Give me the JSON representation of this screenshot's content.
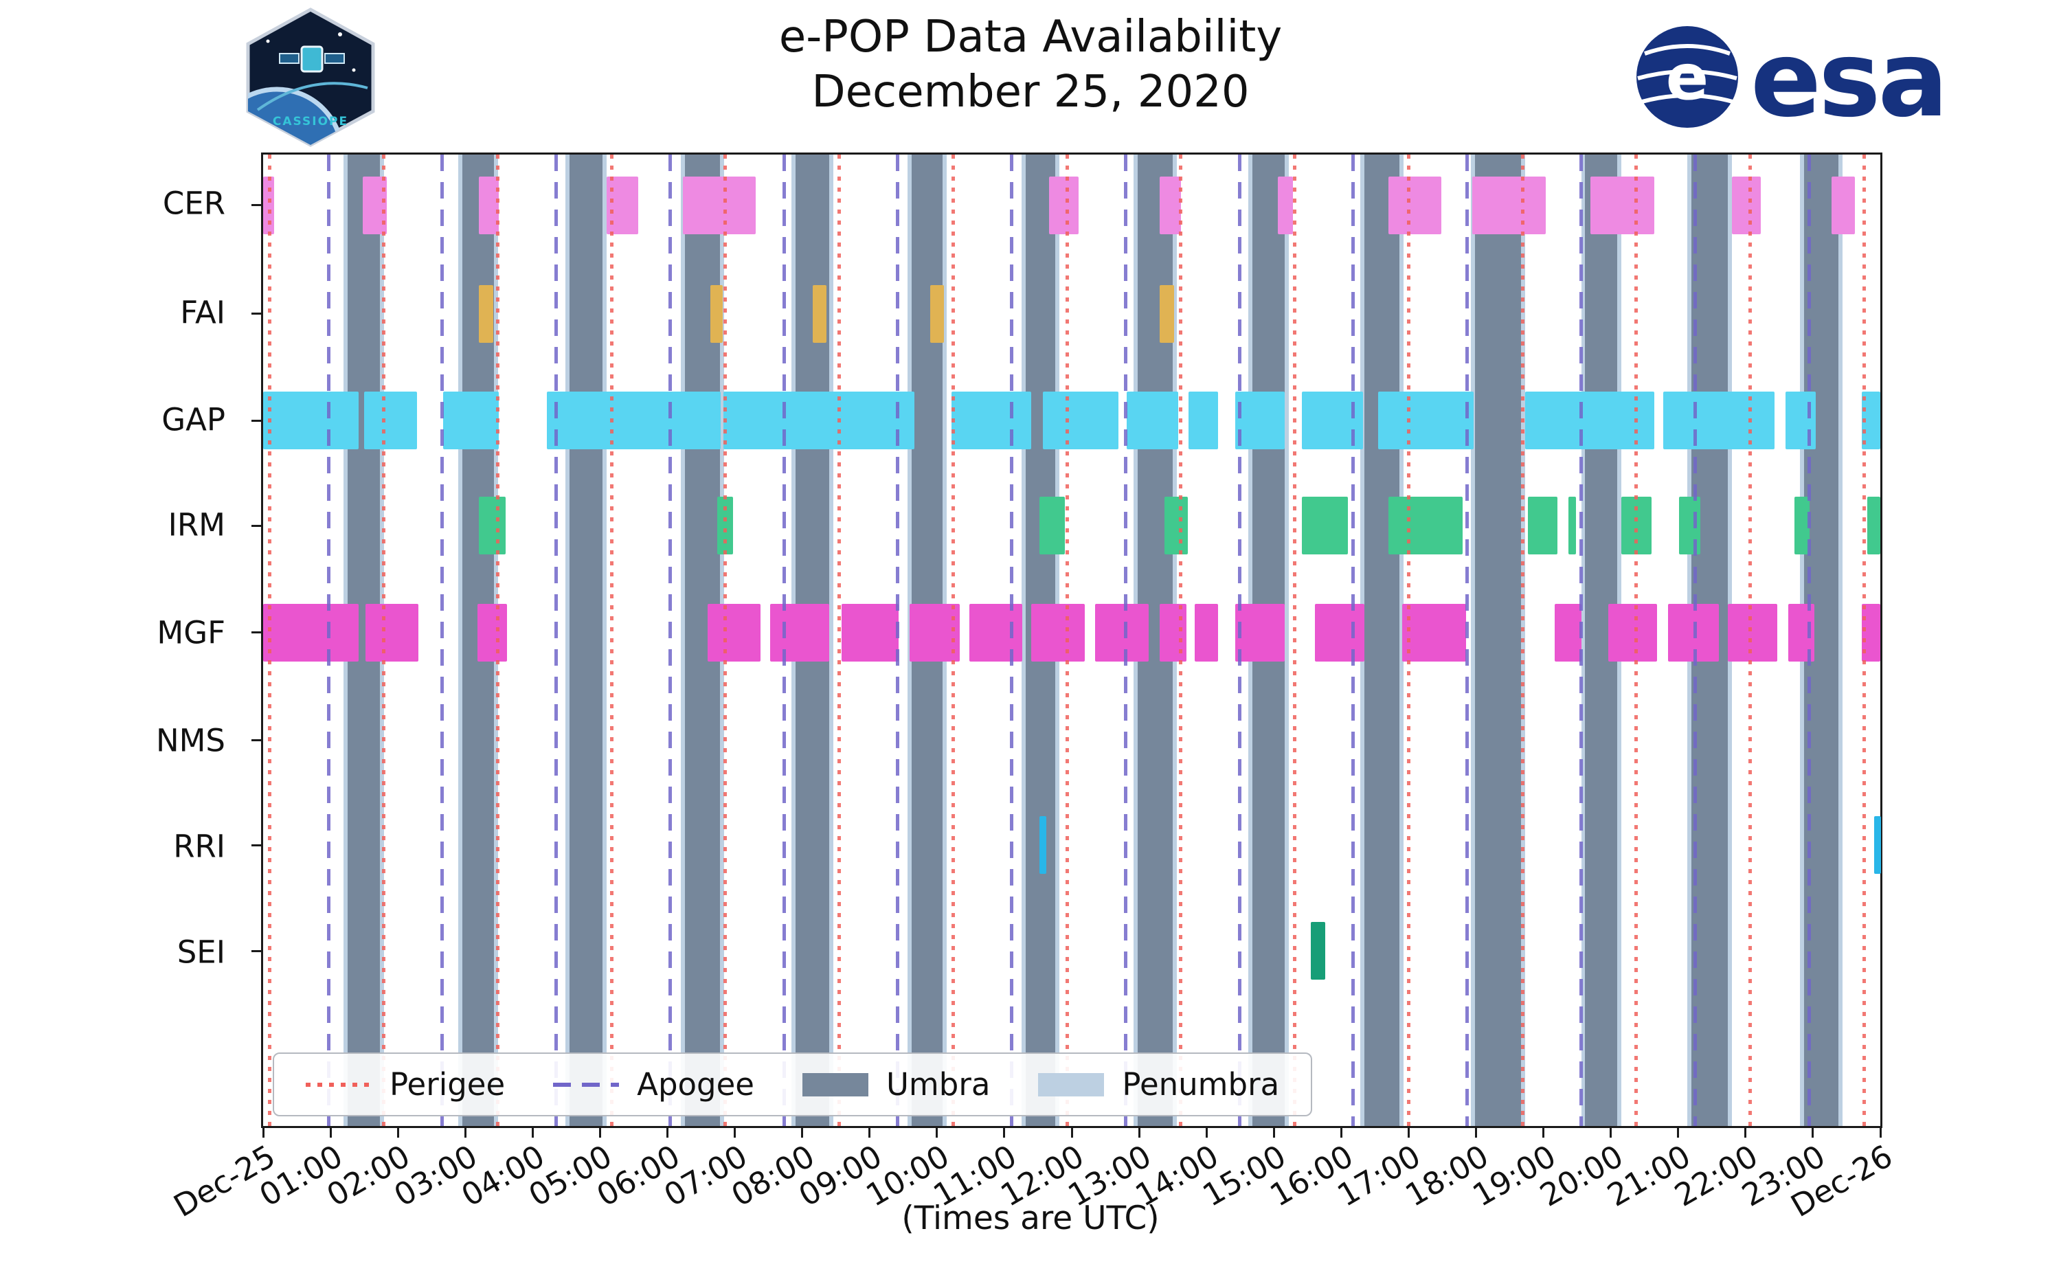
{
  "logos": {
    "cassiope_label": "CASSIOPE",
    "esa_wordmark": "esa",
    "esa_globe_letter": "e",
    "esa_blue": "#16327f",
    "patch_navy": "#0d1b33",
    "patch_teal": "#35c4d8"
  },
  "chart_data": {
    "type": "timeline",
    "title": "e-POP Data Availability",
    "subtitle": "December 25, 2020",
    "x_axis": {
      "label": "(Times are UTC)",
      "range_hours": [
        0,
        24
      ],
      "tick_labels": [
        "Dec-25",
        "01:00",
        "02:00",
        "03:00",
        "04:00",
        "05:00",
        "06:00",
        "07:00",
        "08:00",
        "09:00",
        "10:00",
        "11:00",
        "12:00",
        "13:00",
        "14:00",
        "15:00",
        "16:00",
        "17:00",
        "18:00",
        "19:00",
        "20:00",
        "21:00",
        "22:00",
        "23:00",
        "Dec-26"
      ]
    },
    "rows": [
      "CER",
      "FAI",
      "GAP",
      "IRM",
      "MGF",
      "NMS",
      "RRI",
      "SEI"
    ],
    "row_colors": {
      "CER": "#ee8ae2",
      "FAI": "#e0b353",
      "GAP": "#59d5f2",
      "IRM": "#41c98e",
      "MGF": "#ea55cf",
      "NMS": "#999999",
      "RRI": "#29b6e8",
      "SEI": "#179e77"
    },
    "event_lines": {
      "perigee": {
        "style": "dotted",
        "color": "#f0605a",
        "hours": [
          0.1,
          1.79,
          3.48,
          5.17,
          6.86,
          8.55,
          10.24,
          11.93,
          13.62,
          15.31,
          17.0,
          18.69,
          20.38,
          22.07,
          23.76
        ]
      },
      "apogee": {
        "style": "dashed",
        "color": "#7166c9",
        "hours": [
          0.97,
          2.66,
          4.35,
          6.04,
          7.73,
          9.42,
          11.11,
          12.8,
          14.49,
          16.18,
          17.87,
          19.56,
          21.25,
          22.94
        ]
      }
    },
    "shading": {
      "umbra": {
        "color": "#76879b",
        "intervals": [
          [
            1.25,
            1.73
          ],
          [
            2.96,
            3.43
          ],
          [
            4.55,
            5.04
          ],
          [
            6.26,
            6.78
          ],
          [
            7.9,
            8.4
          ],
          [
            9.62,
            10.08
          ],
          [
            11.32,
            11.76
          ],
          [
            12.98,
            13.5
          ],
          [
            14.68,
            15.16
          ],
          [
            16.34,
            16.86
          ],
          [
            17.98,
            18.67
          ],
          [
            19.62,
            20.1
          ],
          [
            21.2,
            21.74
          ],
          [
            22.87,
            23.38
          ]
        ]
      },
      "penumbra": {
        "color": "#bdd0e2",
        "intervals": [
          [
            1.19,
            1.25
          ],
          [
            1.73,
            1.79
          ],
          [
            2.9,
            2.96
          ],
          [
            3.43,
            3.49
          ],
          [
            4.49,
            4.55
          ],
          [
            5.04,
            5.1
          ],
          [
            6.2,
            6.26
          ],
          [
            6.78,
            6.84
          ],
          [
            7.84,
            7.9
          ],
          [
            8.4,
            8.46
          ],
          [
            9.56,
            9.62
          ],
          [
            10.08,
            10.14
          ],
          [
            11.26,
            11.32
          ],
          [
            11.76,
            11.82
          ],
          [
            12.92,
            12.98
          ],
          [
            13.5,
            13.56
          ],
          [
            14.62,
            14.68
          ],
          [
            15.16,
            15.22
          ],
          [
            16.28,
            16.34
          ],
          [
            16.86,
            16.92
          ],
          [
            17.92,
            17.98
          ],
          [
            18.67,
            18.73
          ],
          [
            19.56,
            19.62
          ],
          [
            20.1,
            20.16
          ],
          [
            21.14,
            21.2
          ],
          [
            21.74,
            21.8
          ],
          [
            22.81,
            22.87
          ],
          [
            23.38,
            23.44
          ]
        ]
      }
    },
    "legend": [
      {
        "label": "Perigee",
        "swatch": "dotted-line",
        "color": "#f0605a"
      },
      {
        "label": "Apogee",
        "swatch": "dashed-line",
        "color": "#7166c9"
      },
      {
        "label": "Umbra",
        "swatch": "box",
        "color": "#76879b"
      },
      {
        "label": "Penumbra",
        "swatch": "box",
        "color": "#bdd0e2"
      }
    ],
    "availability_intervals_hours": {
      "CER": [
        [
          0.0,
          0.16
        ],
        [
          1.48,
          1.84
        ],
        [
          3.2,
          3.5
        ],
        [
          5.1,
          5.57
        ],
        [
          6.23,
          7.31
        ],
        [
          11.66,
          12.1
        ],
        [
          13.3,
          13.62
        ],
        [
          15.06,
          15.28
        ],
        [
          16.7,
          17.49
        ],
        [
          17.94,
          19.03
        ],
        [
          19.7,
          20.65
        ],
        [
          21.8,
          22.23
        ],
        [
          23.28,
          23.62
        ]
      ],
      "FAI": [
        [
          3.2,
          3.42
        ],
        [
          6.64,
          6.82
        ],
        [
          8.16,
          8.36
        ],
        [
          9.9,
          10.1
        ],
        [
          13.3,
          13.52
        ]
      ],
      "GAP": [
        [
          0.0,
          1.42
        ],
        [
          1.5,
          2.28
        ],
        [
          2.67,
          3.5
        ],
        [
          4.21,
          6.79
        ],
        [
          6.83,
          9.67
        ],
        [
          10.22,
          11.4
        ],
        [
          11.57,
          12.69
        ],
        [
          12.82,
          13.58
        ],
        [
          13.73,
          14.17
        ],
        [
          14.43,
          15.16
        ],
        [
          15.42,
          16.32
        ],
        [
          16.55,
          17.96
        ],
        [
          18.73,
          20.65
        ],
        [
          20.78,
          22.43
        ],
        [
          22.59,
          23.04
        ],
        [
          23.72,
          24.0
        ]
      ],
      "IRM": [
        [
          3.2,
          3.6
        ],
        [
          6.74,
          6.97
        ],
        [
          11.52,
          11.9
        ],
        [
          13.38,
          13.72
        ],
        [
          15.42,
          16.1
        ],
        [
          16.7,
          17.8
        ],
        [
          18.77,
          19.21
        ],
        [
          19.37,
          19.48
        ],
        [
          20.16,
          20.6
        ],
        [
          21.01,
          21.33
        ],
        [
          22.73,
          22.95
        ],
        [
          23.81,
          24.0
        ]
      ],
      "MGF": [
        [
          0.0,
          1.42
        ],
        [
          1.52,
          2.3
        ],
        [
          3.18,
          3.62
        ],
        [
          6.6,
          7.38
        ],
        [
          7.52,
          8.4
        ],
        [
          8.58,
          9.43
        ],
        [
          9.59,
          10.34
        ],
        [
          10.48,
          11.27
        ],
        [
          11.4,
          12.19
        ],
        [
          12.35,
          13.14
        ],
        [
          13.3,
          13.7
        ],
        [
          13.83,
          14.17
        ],
        [
          14.43,
          15.16
        ],
        [
          15.61,
          16.34
        ],
        [
          16.9,
          17.85
        ],
        [
          19.17,
          19.57
        ],
        [
          19.96,
          20.69
        ],
        [
          20.85,
          21.6
        ],
        [
          21.74,
          22.47
        ],
        [
          22.63,
          23.02
        ],
        [
          23.72,
          24.0
        ]
      ],
      "NMS": [],
      "RRI": [
        [
          11.52,
          11.62
        ],
        [
          23.91,
          24.0
        ]
      ],
      "SEI": [
        [
          15.55,
          15.76
        ]
      ]
    }
  }
}
